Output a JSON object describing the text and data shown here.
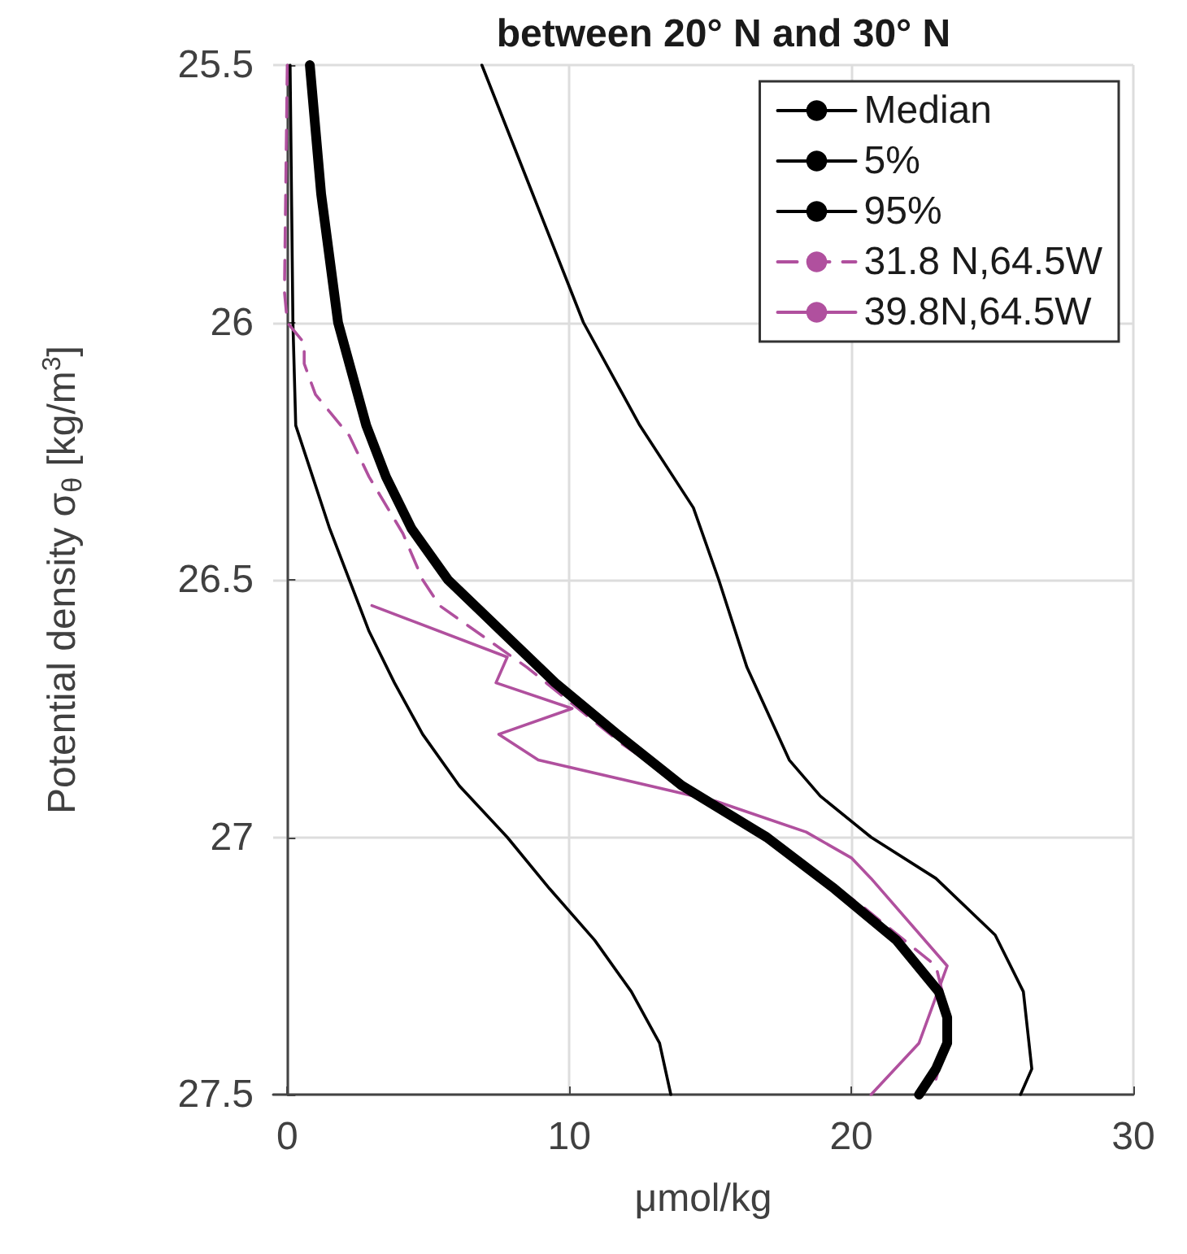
{
  "chart_data": {
    "type": "line",
    "title": "between 20° N and 30° N",
    "xlabel": "μmol/kg",
    "ylabel": "Potential density σ$_{θ}$ [kg/m$^{3}$]",
    "xlim": [
      -0.5,
      30
    ],
    "xticks": [
      0,
      10,
      20,
      30
    ],
    "ylim": [
      27.5,
      25.5
    ],
    "yticks": [
      25.5,
      26,
      26.5,
      27,
      27.5
    ],
    "grid": true,
    "legend": "top right",
    "marker": "none",
    "series": [
      {
        "name": "Median",
        "color": "#000000",
        "line_style": "solid",
        "x": [
          0.8,
          1.2,
          1.8,
          2.8,
          3.5,
          4.4,
          5.7,
          7.6,
          9.5,
          11.7,
          14.0,
          17.0,
          19.4,
          21.6,
          23.1,
          23.4,
          23.4,
          23.0,
          22.4
        ],
        "values": [
          25.5,
          25.75,
          26.0,
          26.2,
          26.3,
          26.4,
          26.5,
          26.6,
          26.7,
          26.8,
          26.9,
          27.0,
          27.1,
          27.2,
          27.3,
          27.35,
          27.4,
          27.45,
          27.5
        ]
      },
      {
        "name": "5%",
        "color": "#000000",
        "line_style": "solid",
        "x": [
          0.1,
          0.2,
          0.3,
          0.9,
          1.5,
          2.2,
          2.9,
          3.8,
          4.8,
          6.1,
          7.8,
          9.3,
          10.9,
          12.2,
          13.2,
          13.6
        ],
        "values": [
          25.5,
          26.0,
          26.2,
          26.3,
          26.4,
          26.5,
          26.6,
          26.7,
          26.8,
          26.9,
          27.0,
          27.1,
          27.2,
          27.3,
          27.4,
          27.5
        ]
      },
      {
        "name": "95%",
        "color": "#000000",
        "line_style": "solid",
        "x": [
          6.9,
          8.7,
          10.5,
          12.5,
          14.4,
          15.3,
          16.3,
          17.8,
          18.9,
          20.7,
          23.0,
          25.1,
          26.1,
          26.4,
          26.0
        ],
        "values": [
          25.5,
          25.75,
          26.0,
          26.2,
          26.36,
          26.5,
          26.67,
          26.85,
          26.92,
          27.0,
          27.08,
          27.19,
          27.3,
          27.45,
          27.5
        ]
      },
      {
        "name": "31.8 N,64.5W",
        "color": "#b0509e",
        "line_style": "dashed",
        "x": [
          0.0,
          -0.1,
          0.0,
          0.6,
          0.6,
          1.0,
          2.2,
          2.9,
          4.1,
          4.8,
          5.4,
          8.5,
          11.9,
          16.8,
          20.3,
          23.0,
          23.4,
          23.3,
          23.0
        ],
        "values": [
          25.5,
          25.94,
          26.0,
          26.04,
          26.08,
          26.14,
          26.22,
          26.3,
          26.41,
          26.5,
          26.55,
          26.67,
          26.82,
          27.0,
          27.13,
          27.25,
          27.34,
          27.41,
          27.47
        ]
      },
      {
        "name": "39.8N,64.5W",
        "color": "#b0509e",
        "line_style": "solid",
        "x": [
          3.0,
          7.8,
          7.4,
          10.1,
          7.5,
          8.9,
          15.2,
          18.4,
          20.0,
          20.7,
          23.4,
          22.4,
          20.7
        ],
        "values": [
          26.55,
          26.65,
          26.7,
          26.75,
          26.8,
          26.85,
          26.93,
          26.99,
          27.04,
          27.08,
          27.25,
          27.4,
          27.5
        ]
      }
    ]
  }
}
